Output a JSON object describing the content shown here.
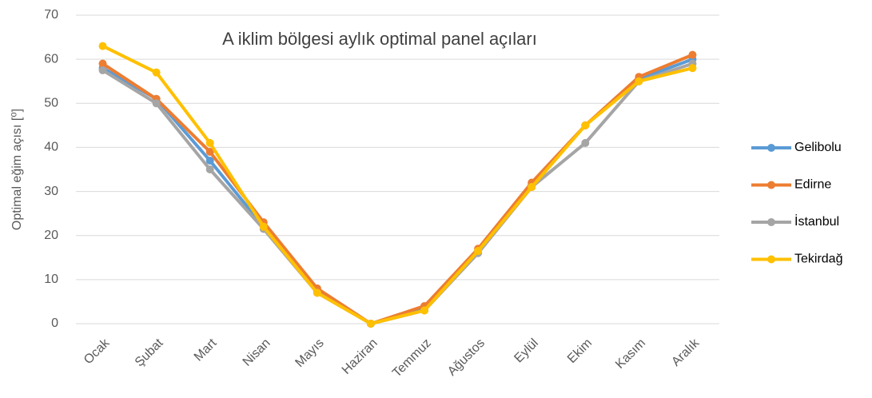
{
  "chart_data": {
    "type": "line",
    "title": "A iklim bölgesi aylık optimal panel açıları",
    "y_label": "Optimal eğim açısı [⁰]",
    "categories": [
      "Ocak",
      "Şubat",
      "Mart",
      "Nisan",
      "Mayıs",
      "Haziran",
      "Temmuz",
      "Ağustos",
      "Eylül",
      "Ekim",
      "Kasım",
      "Aralık"
    ],
    "series": [
      {
        "name": "Gelibolu",
        "color": "#5b9bd5",
        "values": [
          58,
          51,
          37,
          22,
          7.5,
          0,
          3.5,
          16.5,
          31.5,
          45,
          55.5,
          60
        ]
      },
      {
        "name": "Edirne",
        "color": "#ed7d31",
        "values": [
          59,
          51,
          39,
          23,
          8,
          0,
          4,
          17,
          32,
          45,
          56,
          61
        ]
      },
      {
        "name": "İstanbul",
        "color": "#a5a5a5",
        "values": [
          57.5,
          50,
          35,
          21.5,
          7,
          0,
          3,
          16,
          31,
          41,
          55,
          59
        ]
      },
      {
        "name": "Tekirdağ",
        "color": "#ffc000",
        "values": [
          63,
          57,
          41,
          22,
          7,
          0,
          3,
          16.5,
          31,
          45,
          55,
          58
        ]
      }
    ],
    "ylim": [
      0,
      70
    ],
    "yticks": [
      0,
      10,
      20,
      30,
      40,
      50,
      60,
      70
    ],
    "grid": true,
    "legend": "right"
  }
}
